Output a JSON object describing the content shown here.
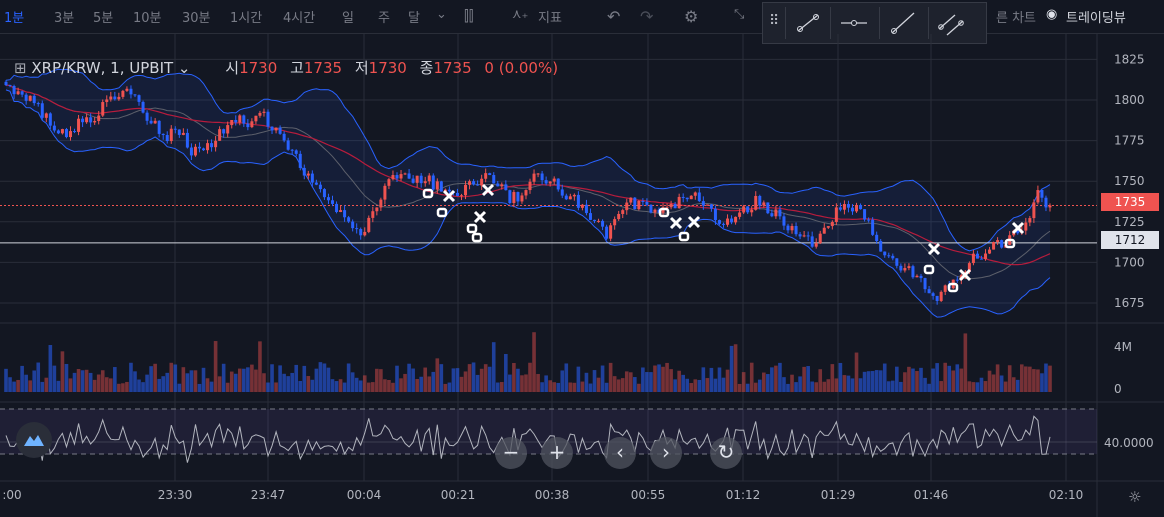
{
  "toolbar": {
    "intervals": [
      "1분",
      "3분",
      "5분",
      "10분",
      "30분",
      "1시간",
      "4시간",
      "일",
      "주",
      "달"
    ],
    "active_interval": "1분",
    "indicator_label": "지표",
    "right_text_1": "른 차트",
    "right_text_2": "트레이딩뷰"
  },
  "legend": {
    "symbol": "XRP/KRW, 1, UPBIT",
    "open_label": "시",
    "open": "1730",
    "high_label": "고",
    "high": "1735",
    "low_label": "저",
    "low": "1730",
    "close_label": "종",
    "close": "1735",
    "change": "0 (0.00%)"
  },
  "colors": {
    "background": "#131722",
    "up": "#ef5350",
    "down": "#2962ff",
    "bollinger": "#2962ff",
    "ma": "#b71c3c",
    "osc": "#b2b5be",
    "tag_last": "#ef5350"
  },
  "nav": {
    "zoom_out": "−",
    "zoom_in": "+",
    "left": "‹",
    "right": "›",
    "reset": "↻"
  },
  "chart_data": {
    "type": "candlestick",
    "price_axis": {
      "ticks": [
        1825,
        1800,
        1775,
        1750,
        1725,
        1700,
        1675
      ]
    },
    "last_price_tag": "1735",
    "hline_tag": "1712",
    "time_axis": {
      "ticks": [
        ":00",
        "23:30",
        "23:47",
        "00:04",
        "00:21",
        "00:38",
        "00:55",
        "01:12",
        "01:29",
        "01:46",
        "02:10"
      ]
    },
    "close_path": [
      1808,
      1804,
      1800,
      1792,
      1783,
      1776,
      1789,
      1785,
      1799,
      1802,
      1805,
      1794,
      1786,
      1777,
      1783,
      1770,
      1768,
      1776,
      1782,
      1788,
      1785,
      1791,
      1780,
      1772,
      1760,
      1748,
      1740,
      1731,
      1722,
      1718,
      1733,
      1748,
      1756,
      1750,
      1752,
      1748,
      1745,
      1742,
      1749,
      1752,
      1750,
      1739,
      1742,
      1751,
      1752,
      1746,
      1740,
      1733,
      1725,
      1717,
      1730,
      1737,
      1735,
      1731,
      1733,
      1738,
      1741,
      1733,
      1727,
      1725,
      1731,
      1738,
      1734,
      1728,
      1720,
      1714,
      1712,
      1722,
      1735,
      1733,
      1728,
      1712,
      1704,
      1698,
      1693,
      1684,
      1679,
      1687,
      1697,
      1704,
      1708,
      1712,
      1716,
      1722,
      1742,
      1735
    ],
    "volume_axis": {
      "ticks": [
        "4M",
        "0"
      ]
    },
    "oscillator_axis": {
      "ticks": [
        "40.0000"
      ]
    }
  }
}
